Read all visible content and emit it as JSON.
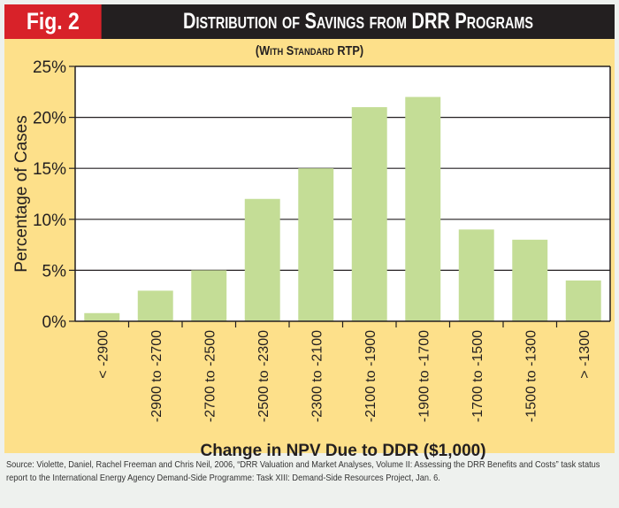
{
  "header": {
    "fig_label": "Fig. 2",
    "title": "Distribution of Savings from DRR Programs",
    "subtitle": "(With Standard RTP)"
  },
  "colors": {
    "bar": "#c4dd96",
    "background": "#fde08a",
    "fig_badge": "#d82229",
    "title_bar": "#231f20"
  },
  "chart_data": {
    "type": "bar",
    "title": "Distribution of Savings from DRR Programs",
    "subtitle": "(With Standard RTP)",
    "xlabel": "Change in NPV Due to DDR ($1,000)",
    "ylabel": "Percentage of Cases",
    "ylim": [
      0,
      25
    ],
    "yticks": [
      0,
      5,
      10,
      15,
      20,
      25
    ],
    "ytick_labels": [
      "0%",
      "5%",
      "10%",
      "15%",
      "20%",
      "25%"
    ],
    "grid": true,
    "categories": [
      "< -2900",
      "-2900 to -2700",
      "-2700 to -2500",
      "-2500 to -2300",
      "-2300 to -2100",
      "-2100 to -1900",
      "-1900 to -1700",
      "-1700 to -1500",
      "-1500 to -1300",
      "> -1300"
    ],
    "values": [
      0.8,
      3,
      5,
      12,
      15,
      21,
      22,
      9,
      8,
      4
    ]
  },
  "source": "Source: Violette, Daniel, Rachel Freeman and Chris Neil, 2006, “DRR Valuation and Market Analyses, Volume II: Assessing the DRR Benefits and Costs” task status report to the International Energy Agency Demand-Side Programme: Task XIII: Demand-Side Resources Project, Jan. 6."
}
